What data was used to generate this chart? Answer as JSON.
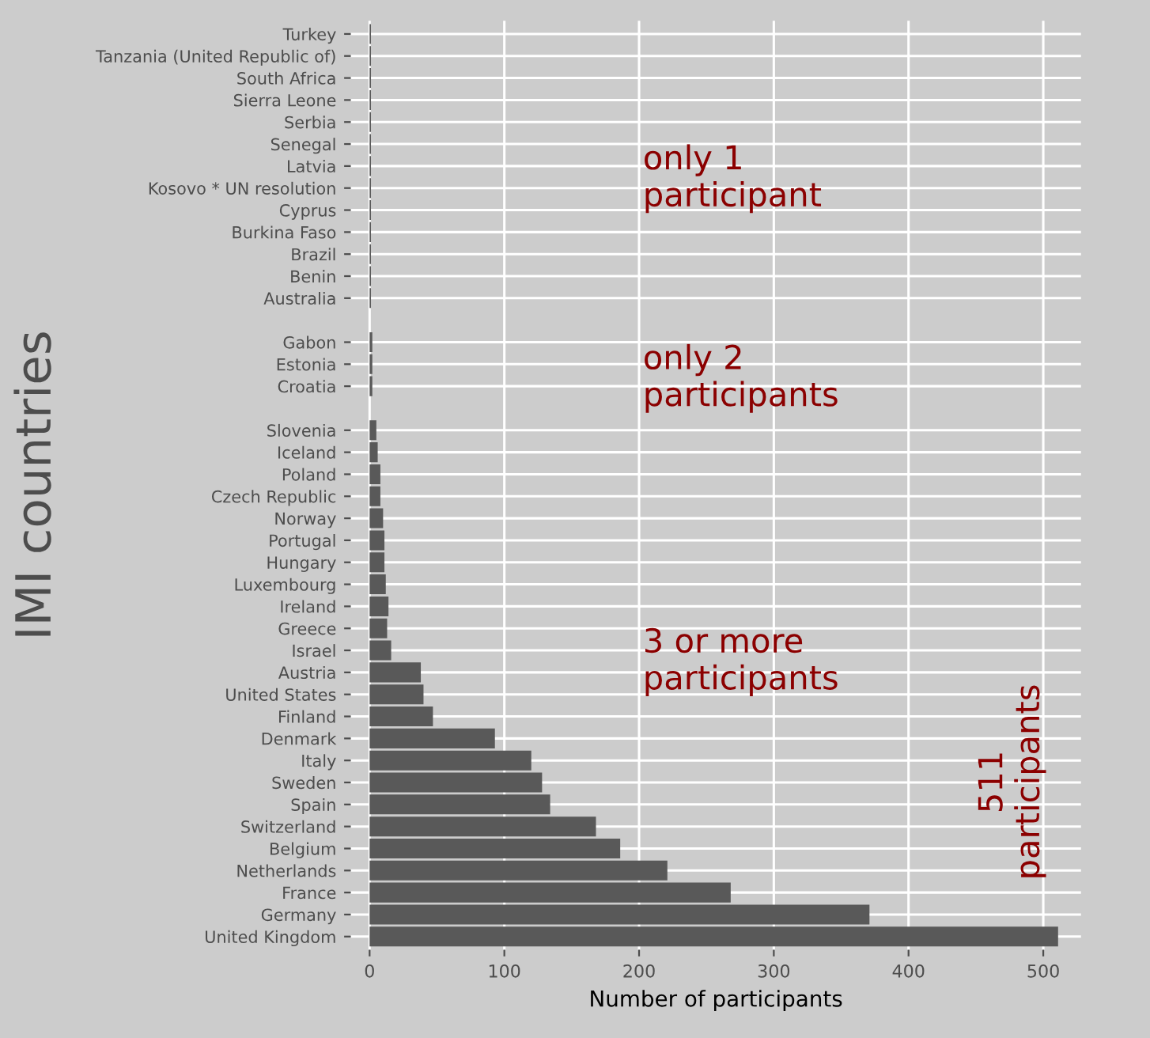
{
  "chart_data": {
    "type": "bar",
    "orientation": "horizontal",
    "xlabel": "Number of participants",
    "ylabel": "IMI countries",
    "categories": [
      "Turkey",
      "Tanzania (United Republic of)",
      "South Africa",
      "Sierra Leone",
      "Serbia",
      "Senegal",
      "Latvia",
      "Kosovo * UN resolution",
      "Cyprus",
      "Burkina Faso",
      "Brazil",
      "Benin",
      "Australia",
      null,
      "Gabon",
      "Estonia",
      "Croatia",
      null,
      "Slovenia",
      "Iceland",
      "Poland",
      "Czech Republic",
      "Norway",
      "Portugal",
      "Hungary",
      "Luxembourg",
      "Ireland",
      "Greece",
      "Israel",
      "Austria",
      "United States",
      "Finland",
      "Denmark",
      "Italy",
      "Sweden",
      "Spain",
      "Switzerland",
      "Belgium",
      "Netherlands",
      "France",
      "Germany",
      "United Kingdom"
    ],
    "values": [
      1,
      1,
      1,
      1,
      1,
      1,
      1,
      1,
      1,
      1,
      1,
      1,
      1,
      null,
      2,
      2,
      2,
      null,
      5,
      6,
      8,
      8,
      10,
      11,
      11,
      12,
      14,
      13,
      16,
      38,
      40,
      47,
      93,
      120,
      128,
      134,
      168,
      186,
      221,
      268,
      371,
      511
    ],
    "color": "#595959",
    "xlim": [
      -14,
      528
    ],
    "xticks": [
      0,
      100,
      200,
      300,
      400,
      500
    ],
    "grid": true,
    "annotations": [
      "only 1\nparticipant",
      "only 2\nparticipants",
      "3 or more\nparticipants",
      "511\nparticipants"
    ]
  }
}
